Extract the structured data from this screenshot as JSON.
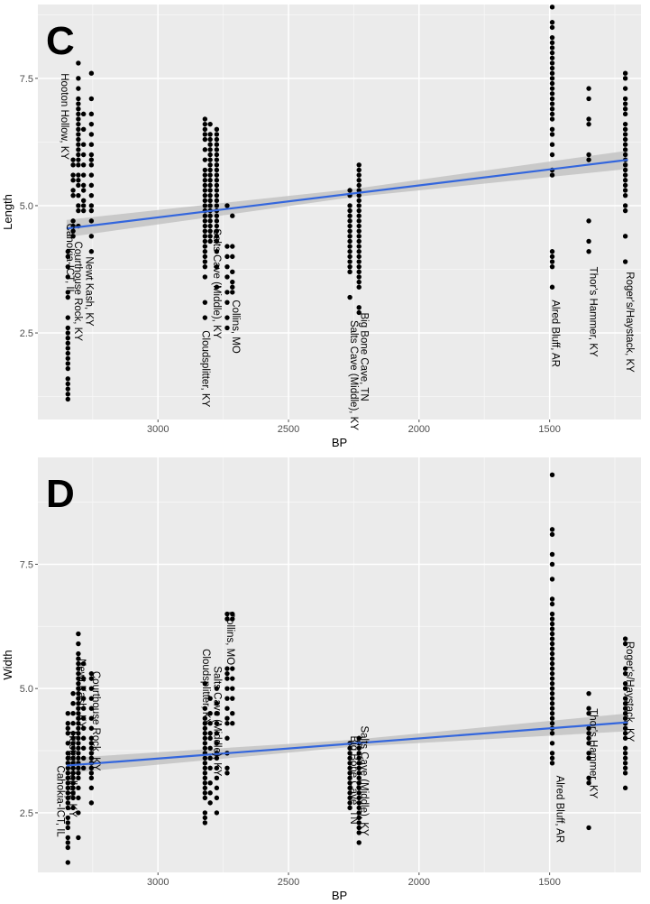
{
  "chart_data": [
    {
      "type": "scatter",
      "panel_label": "C",
      "xlabel": "BP",
      "ylabel": "Length",
      "x_reversed": true,
      "xlim": [
        3460,
        1150
      ],
      "ylim": [
        0.8,
        8.95
      ],
      "x_ticks": [
        3000,
        2500,
        2000,
        1500
      ],
      "y_ticks": [
        2.5,
        5.0,
        7.5
      ],
      "x_tick_labels": [
        "3000",
        "2500",
        "2000",
        "1500"
      ],
      "y_tick_labels": [
        "2.5",
        "5.0",
        "7.5"
      ],
      "grid": true,
      "point_color": "#000000",
      "trend_color": "#3366dd",
      "band_color": "#bdbdbd",
      "trendline": {
        "x": [
          3350,
          1200
        ],
        "y": [
          4.55,
          5.9
        ]
      },
      "band": {
        "x": [
          3350,
          2250,
          1200
        ],
        "upper": [
          4.72,
          5.33,
          6.08
        ],
        "lower": [
          4.38,
          5.17,
          5.72
        ]
      },
      "columns": [
        {
          "x": 3345,
          "values": [
            4.1,
            4.0,
            3.8,
            3.6,
            3.3,
            3.2,
            2.8,
            2.6,
            2.5,
            2.4,
            2.3,
            2.2,
            2.1,
            2.0,
            1.9,
            1.8,
            1.6,
            1.5,
            1.4,
            1.3,
            1.2
          ]
        },
        {
          "x": 3325,
          "values": [
            5.9,
            5.8,
            5.6,
            5.5,
            5.3,
            5.2,
            4.7,
            4.6,
            4.5,
            4.4
          ]
        },
        {
          "x": 3305,
          "values": [
            7.8,
            7.5,
            7.3,
            7.1,
            7.0,
            6.9,
            6.8,
            6.7,
            6.6,
            6.5,
            6.4,
            6.3,
            6.2,
            6.1,
            6.0,
            5.9,
            5.8,
            5.6,
            5.5,
            5.4,
            5.2,
            5.0,
            4.9,
            4.6
          ]
        },
        {
          "x": 3285,
          "values": [
            6.8,
            6.5,
            6.2,
            6.0,
            5.8,
            5.6,
            5.4,
            5.3,
            5.1,
            5.0,
            4.9
          ]
        },
        {
          "x": 3255,
          "values": [
            7.6,
            7.1,
            6.8,
            6.6,
            6.4,
            6.2,
            6.0,
            5.9,
            5.8,
            5.6,
            5.4,
            5.2,
            5.0,
            4.9,
            4.7,
            4.4,
            4.1
          ]
        },
        {
          "x": 2820,
          "values": [
            6.7,
            6.6,
            6.5,
            6.4,
            6.3,
            6.1,
            5.9,
            5.7,
            5.6,
            5.5,
            5.4,
            5.3,
            5.2,
            5.1,
            5.0,
            4.9,
            4.8,
            4.7,
            4.6,
            4.5,
            4.4,
            4.3,
            4.2,
            4.1,
            4.0,
            3.9,
            3.8,
            3.6,
            3.1,
            2.8
          ]
        },
        {
          "x": 2800,
          "values": [
            6.6,
            6.4,
            6.3,
            6.2,
            6.1,
            6.0,
            5.9,
            5.8,
            5.7,
            5.6,
            5.5,
            5.4,
            5.3,
            5.2,
            5.1,
            5.0,
            4.9,
            4.8,
            4.7,
            4.6,
            4.5,
            4.4,
            4.3
          ]
        },
        {
          "x": 2775,
          "values": [
            6.5,
            6.4,
            6.3,
            6.2,
            6.1,
            6.0,
            5.9,
            5.8,
            5.7,
            5.6,
            5.5,
            5.4,
            5.3,
            5.2,
            5.1,
            5.0,
            4.9,
            4.8,
            4.7,
            4.6,
            4.5,
            4.4,
            4.3,
            4.1,
            3.8,
            3.4
          ]
        },
        {
          "x": 2735,
          "values": [
            5.0,
            4.2,
            4.0,
            3.8,
            3.6,
            3.3,
            3.1,
            2.8,
            2.6
          ]
        },
        {
          "x": 2715,
          "values": [
            4.8,
            4.2,
            4.0,
            3.7,
            3.5,
            3.4,
            3.3
          ]
        },
        {
          "x": 2265,
          "values": [
            5.3,
            5.2,
            5.0,
            4.9,
            4.8,
            4.7,
            4.6,
            4.5,
            4.4,
            4.3,
            4.2,
            4.1,
            4.0,
            3.9,
            3.8,
            3.7,
            3.2
          ]
        },
        {
          "x": 2230,
          "values": [
            5.8,
            5.7,
            5.6,
            5.5,
            5.4,
            5.3,
            5.2,
            5.1,
            5.0,
            4.9,
            4.8,
            4.7,
            4.6,
            4.5,
            4.4,
            4.3,
            4.2,
            4.1,
            4.0,
            3.9,
            3.8,
            3.7,
            3.6,
            3.5,
            3.4,
            3.0,
            2.9
          ]
        },
        {
          "x": 1490,
          "values": [
            8.9,
            8.6,
            8.5,
            8.3,
            8.2,
            8.1,
            8.0,
            7.9,
            7.8,
            7.7,
            7.6,
            7.5,
            7.4,
            7.3,
            7.2,
            7.1,
            7.0,
            6.9,
            6.8,
            6.7,
            6.5,
            6.4,
            6.2,
            6.0,
            5.7,
            5.6,
            4.1,
            4.0,
            3.9,
            3.8,
            3.4
          ]
        },
        {
          "x": 1350,
          "values": [
            7.3,
            7.1,
            6.7,
            6.6,
            6.0,
            5.9,
            4.7,
            4.3,
            4.1
          ]
        },
        {
          "x": 1210,
          "values": [
            7.6,
            7.5,
            7.3,
            7.1,
            7.0,
            6.9,
            6.8,
            6.6,
            6.5,
            6.4,
            6.3,
            6.2,
            6.1,
            6.0,
            5.9,
            5.8,
            5.7,
            5.6,
            5.5,
            5.4,
            5.3,
            5.2,
            5.0,
            4.9,
            4.4,
            3.9
          ]
        }
      ],
      "site_labels": [
        {
          "text": "Hooton Hollow, KY",
          "x": 3370,
          "y": 7.6
        },
        {
          "text": "Cahokia-ICT, IL",
          "x": 3350,
          "y": 4.65
        },
        {
          "text": "Courthouse Rock, KY",
          "x": 3318,
          "y": 4.3
        },
        {
          "text": "Newt Kash, KY",
          "x": 3275,
          "y": 4.0
        },
        {
          "text": "Cloudsplitter, KY",
          "x": 2830,
          "y": 2.55
        },
        {
          "text": "Salts Cave (Middle), KY",
          "x": 2787,
          "y": 4.55
        },
        {
          "text": "Collins, MO",
          "x": 2715,
          "y": 3.15
        },
        {
          "text": "Salts Cave (Middle), KY",
          "x": 2262,
          "y": 2.75
        },
        {
          "text": "Big Bone Cave, TN",
          "x": 2222,
          "y": 2.9
        },
        {
          "text": "Alred Bluff, AR",
          "x": 1490,
          "y": 3.15
        },
        {
          "text": "Thor's Hammer, KY",
          "x": 1345,
          "y": 3.8
        },
        {
          "text": "Roger's/Haystack, KY",
          "x": 1205,
          "y": 3.7
        }
      ]
    },
    {
      "type": "scatter",
      "panel_label": "D",
      "xlabel": "BP",
      "ylabel": "Width",
      "x_reversed": true,
      "xlim": [
        3460,
        1150
      ],
      "ylim": [
        1.3,
        9.65
      ],
      "x_ticks": [
        3000,
        2500,
        2000,
        1500
      ],
      "y_ticks": [
        2.5,
        5.0,
        7.5
      ],
      "x_tick_labels": [
        "3000",
        "2500",
        "2000",
        "1500"
      ],
      "y_tick_labels": [
        "2.5",
        "5.0",
        "7.5"
      ],
      "grid": true,
      "point_color": "#000000",
      "trend_color": "#3366dd",
      "band_color": "#bdbdbd",
      "trendline": {
        "x": [
          3350,
          1200
        ],
        "y": [
          3.45,
          4.32
        ]
      },
      "band": {
        "x": [
          3350,
          2250,
          1200
        ],
        "upper": [
          3.6,
          3.97,
          4.5
        ],
        "lower": [
          3.3,
          3.83,
          4.14
        ]
      },
      "columns": [
        {
          "x": 3345,
          "values": [
            4.5,
            4.3,
            4.2,
            4.1,
            3.9,
            3.7,
            3.6,
            3.5,
            3.4,
            3.3,
            3.2,
            3.1,
            3.0,
            2.9,
            2.8,
            2.7,
            2.6,
            2.4,
            2.3,
            2.2,
            2.0,
            1.9,
            1.8,
            1.5
          ]
        },
        {
          "x": 3325,
          "values": [
            4.9,
            4.7,
            4.5,
            4.3,
            4.1,
            4.0,
            3.9,
            3.8,
            3.7,
            3.6,
            3.5,
            3.4,
            3.3,
            3.2,
            3.1,
            3.0,
            2.9,
            2.8,
            2.6
          ]
        },
        {
          "x": 3305,
          "values": [
            6.1,
            5.9,
            5.7,
            5.6,
            5.5,
            5.4,
            5.3,
            5.2,
            5.1,
            5.0,
            4.9,
            4.8,
            4.7,
            4.6,
            4.5,
            4.4,
            4.3,
            4.2,
            4.1,
            4.0,
            3.9,
            3.8,
            3.7,
            3.6,
            3.5,
            3.4,
            3.3,
            3.2,
            3.0,
            2.8,
            2.5,
            2.0
          ]
        },
        {
          "x": 3285,
          "values": [
            5.5,
            5.2,
            5.0,
            4.8,
            4.6,
            4.4,
            4.2,
            4.0,
            3.8,
            3.6,
            3.4
          ]
        },
        {
          "x": 3255,
          "values": [
            5.3,
            5.2,
            5.0,
            4.8,
            4.6,
            4.4,
            4.2,
            4.0,
            3.9,
            3.8,
            3.7,
            3.6,
            3.5,
            3.4,
            3.3,
            3.2,
            3.0,
            2.7
          ]
        },
        {
          "x": 2820,
          "values": [
            5.1,
            4.6,
            4.4,
            4.3,
            4.2,
            4.1,
            4.0,
            3.9,
            3.8,
            3.7,
            3.6,
            3.5,
            3.4,
            3.3,
            3.2,
            3.1,
            3.0,
            2.9,
            2.8,
            2.5,
            2.4,
            2.3
          ]
        },
        {
          "x": 2800,
          "values": [
            4.8,
            4.5,
            4.3,
            4.1,
            4.0,
            3.8,
            3.6,
            3.4,
            3.1,
            2.9,
            2.7
          ]
        },
        {
          "x": 2775,
          "values": [
            5.0,
            4.7,
            4.5,
            4.3,
            4.1,
            3.9,
            3.7,
            3.6,
            3.4,
            3.2,
            3.0,
            2.8,
            2.5
          ]
        },
        {
          "x": 2735,
          "values": [
            6.5,
            6.4,
            5.4,
            5.3,
            5.2,
            5.0,
            4.8,
            4.6,
            4.4,
            4.3,
            4.0,
            3.7,
            3.4,
            3.3
          ]
        },
        {
          "x": 2715,
          "values": [
            6.5,
            6.4,
            5.4,
            5.2,
            5.0,
            4.8,
            4.5,
            4.3
          ]
        },
        {
          "x": 2265,
          "values": [
            3.9,
            3.8,
            3.7,
            3.6,
            3.5,
            3.4,
            3.3,
            3.2,
            3.1,
            3.0,
            2.9,
            2.8,
            2.7,
            2.6
          ]
        },
        {
          "x": 2230,
          "values": [
            4.0,
            3.9,
            3.8,
            3.7,
            3.6,
            3.5,
            3.4,
            3.3,
            3.2,
            3.1,
            3.0,
            2.9,
            2.8,
            2.7,
            2.6,
            2.5,
            2.4,
            2.3,
            2.2,
            2.1,
            1.9
          ]
        },
        {
          "x": 1490,
          "values": [
            9.3,
            8.2,
            8.1,
            7.7,
            7.5,
            7.2,
            6.8,
            6.7,
            6.5,
            6.4,
            6.3,
            6.2,
            6.1,
            6.0,
            5.9,
            5.8,
            5.7,
            5.6,
            5.5,
            5.4,
            5.3,
            5.2,
            5.1,
            5.0,
            4.9,
            4.8,
            4.7,
            4.6,
            4.5,
            4.4,
            4.3,
            4.2,
            4.1,
            3.9,
            3.7,
            3.6,
            3.5
          ]
        },
        {
          "x": 1350,
          "values": [
            4.9,
            4.6,
            4.5,
            4.2,
            4.1,
            4.0,
            3.9,
            3.7,
            3.6,
            3.2,
            3.1,
            2.2
          ]
        },
        {
          "x": 1210,
          "values": [
            6.0,
            5.9,
            5.4,
            5.3,
            5.1,
            5.0,
            4.8,
            4.7,
            4.6,
            4.5,
            4.4,
            4.3,
            4.2,
            4.1,
            4.0,
            3.8,
            3.7,
            3.6,
            3.5,
            3.4,
            3.3,
            3.0
          ]
        }
      ],
      "site_labels": [
        {
          "text": "Cahokia-ICT, IL",
          "x": 3385,
          "y": 3.45
        },
        {
          "text": "Hooton Hollow, KY",
          "x": 3340,
          "y": 4.15
        },
        {
          "text": "Newt Kash, KY",
          "x": 3305,
          "y": 5.6
        },
        {
          "text": "Courthouse Rock, KY",
          "x": 3250,
          "y": 5.35
        },
        {
          "text": "Cloudsplitter, KY",
          "x": 2828,
          "y": 5.8
        },
        {
          "text": "Salts Cave (Middle), KY",
          "x": 2785,
          "y": 5.45
        },
        {
          "text": "Collins, MO",
          "x": 2735,
          "y": 6.55
        },
        {
          "text": "Big Bone Cave, TN",
          "x": 2262,
          "y": 4.05
        },
        {
          "text": "Salts Cave (Middle), KY",
          "x": 2222,
          "y": 4.25
        },
        {
          "text": "Alred Bluff, AR",
          "x": 1473,
          "y": 3.25
        },
        {
          "text": "Thor's Hammer, KY",
          "x": 1345,
          "y": 4.6
        },
        {
          "text": "Roger's/Haystack, KY",
          "x": 1205,
          "y": 5.95
        }
      ]
    }
  ]
}
